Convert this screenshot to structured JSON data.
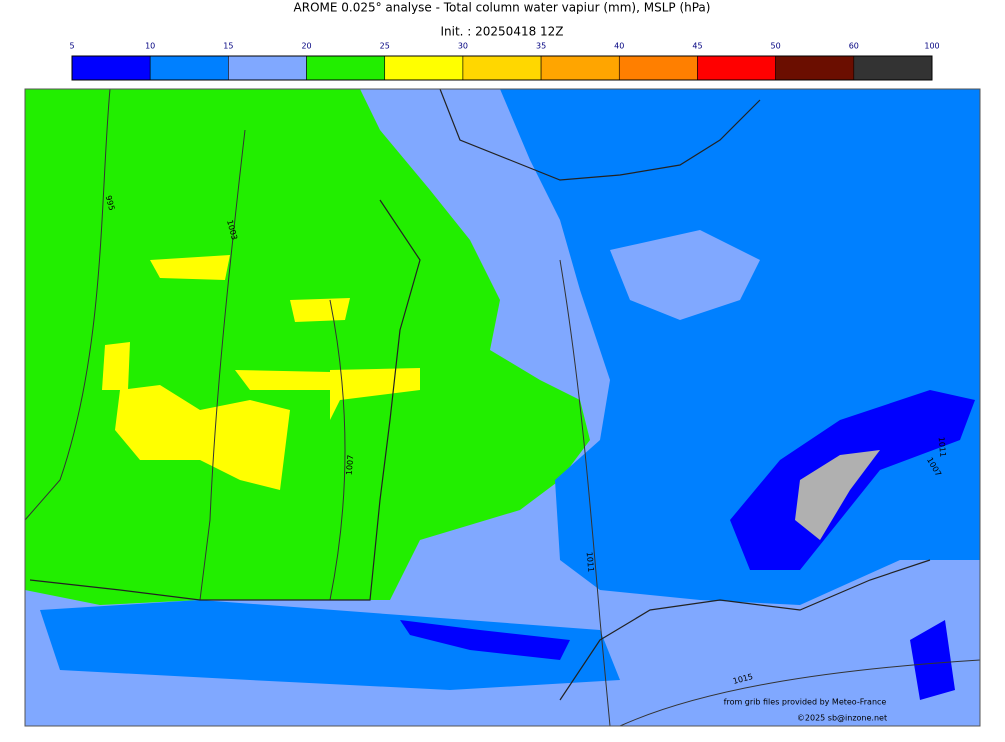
{
  "header": {
    "title": "AROME 0.025° analyse - Total column water vapiur (mm), MSLP (hPa)",
    "init": "Init. : 20250418 12Z"
  },
  "colorbar": {
    "ticks": [
      5,
      10,
      15,
      20,
      25,
      30,
      35,
      40,
      45,
      50,
      60,
      100
    ],
    "colors": [
      "#0000ff",
      "#0080ff",
      "#80a8ff",
      "#22ee00",
      "#ffff00",
      "#ffd700",
      "#ffa500",
      "#ff7f00",
      "#ff0000",
      "#6b0e00",
      "#333333"
    ]
  },
  "isobar_labels": [
    "995",
    "1003",
    "1007",
    "1011",
    "1015",
    "1011",
    "1007"
  ],
  "credits": {
    "source": "from grib files provided by Meteo-France",
    "copyright": "©2025 sb@inzone.net"
  }
}
